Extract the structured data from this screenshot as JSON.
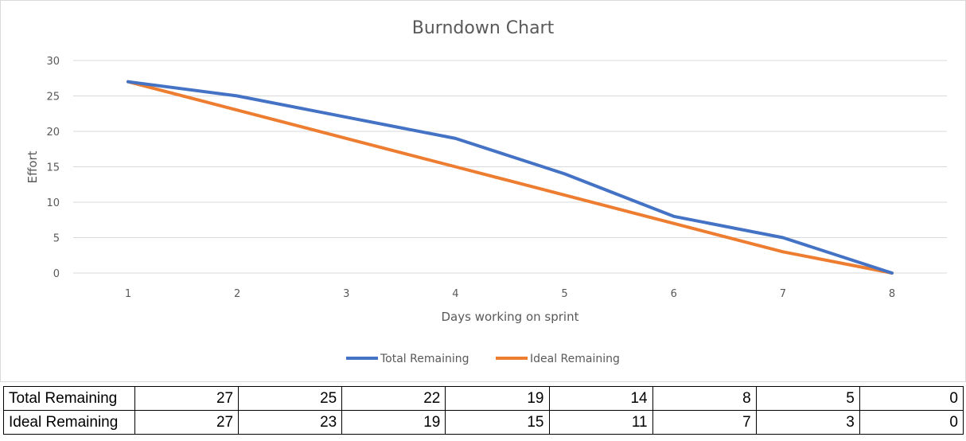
{
  "chart_data": {
    "type": "line",
    "title": "Burndown Chart",
    "xlabel": "Days working on sprint",
    "ylabel": "Effort",
    "categories": [
      "1",
      "2",
      "3",
      "4",
      "5",
      "6",
      "7",
      "8"
    ],
    "ylim": [
      0,
      30
    ],
    "yticks": [
      "0",
      "5",
      "10",
      "15",
      "20",
      "25",
      "30"
    ],
    "grid": true,
    "legend_position": "bottom",
    "series": [
      {
        "name": "Total Remaining",
        "color": "#4472C4",
        "values": [
          27,
          25,
          22,
          19,
          14,
          8,
          5,
          0
        ]
      },
      {
        "name": "Ideal Remaining",
        "color": "#ED7D31",
        "values": [
          27,
          23,
          19,
          15,
          11,
          7,
          3,
          0
        ]
      }
    ]
  },
  "table": {
    "rows": [
      {
        "label": "Total Remaining",
        "values": [
          "27",
          "25",
          "22",
          "19",
          "14",
          "8",
          "5",
          "0"
        ]
      },
      {
        "label": "Ideal Remaining",
        "values": [
          "27",
          "23",
          "19",
          "15",
          "11",
          "7",
          "3",
          "0"
        ]
      }
    ]
  }
}
